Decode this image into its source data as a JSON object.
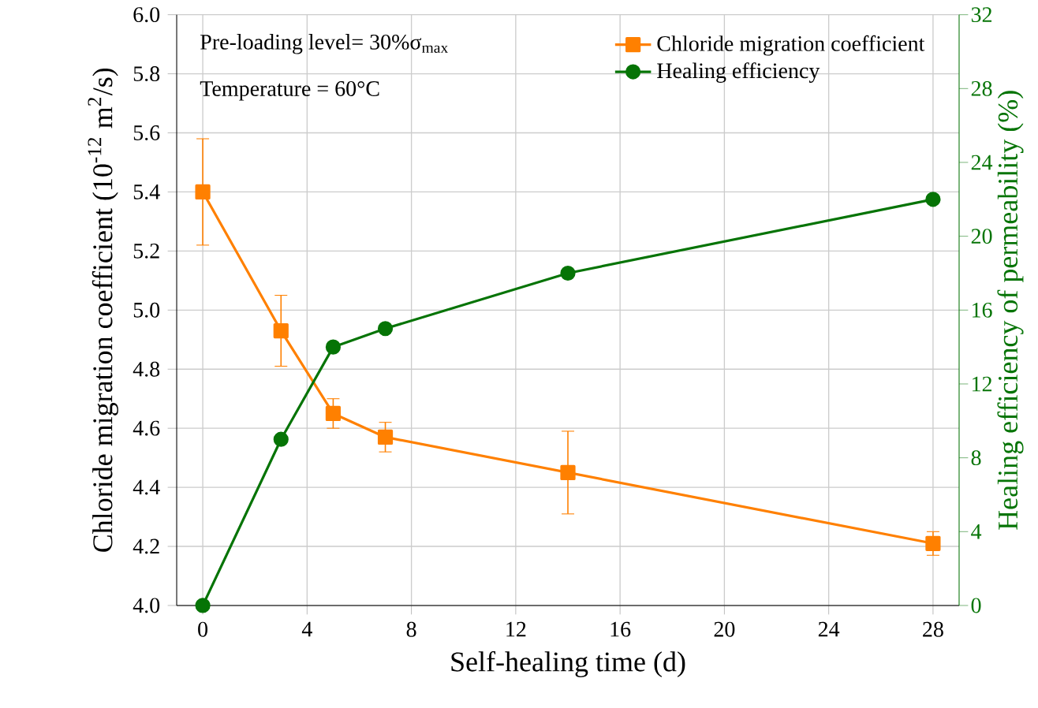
{
  "chart_data": {
    "type": "line",
    "xlabel": "Self-healing time (d)",
    "ylabel": "Chloride migration coefficient (10$^{-12}$ m$^{2}$/s)",
    "y2label": "Healing efficiency of permeability (%)",
    "annotations": [
      "Pre-loading level= 30%σ$_{max}$",
      "Temperature = 60°C"
    ],
    "x": [
      0,
      3,
      5,
      7,
      14,
      28
    ],
    "series": [
      {
        "name": "Chloride migration coefficient",
        "color": "#ff8000",
        "marker": "square",
        "values": [
          5.4,
          4.93,
          4.65,
          4.57,
          4.45,
          4.21
        ],
        "errors": [
          0.18,
          0.12,
          0.05,
          0.05,
          0.14,
          0.04
        ]
      },
      {
        "name": "Healing efficiency",
        "color": "#067406",
        "marker": "circle",
        "axis": "y2",
        "values": [
          0,
          9,
          14,
          15,
          18,
          22
        ]
      }
    ],
    "xlim": [
      -1,
      29
    ],
    "xticks": [
      0,
      4,
      8,
      12,
      16,
      20,
      24,
      28
    ],
    "ylim": [
      4.0,
      6.0
    ],
    "yticks": [
      {
        "value": 4.0,
        "label": "4.0"
      },
      {
        "value": 4.2,
        "label": "4.2"
      },
      {
        "value": 4.4,
        "label": "4.4"
      },
      {
        "value": 4.6,
        "label": "4.6"
      },
      {
        "value": 4.8,
        "label": "4.8"
      },
      {
        "value": 5.0,
        "label": "5.0"
      },
      {
        "value": 5.2,
        "label": "5.2"
      },
      {
        "value": 5.4,
        "label": "5.4"
      },
      {
        "value": 5.6,
        "label": "5.6"
      },
      {
        "value": 5.8,
        "label": "5.8"
      },
      {
        "value": 6.0,
        "label": "6.0"
      }
    ],
    "y2lim": [
      0,
      32
    ],
    "y2ticks": [
      0,
      4,
      8,
      12,
      16,
      20,
      24,
      28,
      32
    ],
    "grid": true,
    "legend": "top right"
  }
}
